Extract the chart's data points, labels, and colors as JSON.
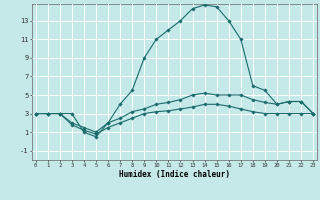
{
  "xlabel": "Humidex (Indice chaleur)",
  "background_color": "#c5e8e8",
  "grid_color": "#ffffff",
  "line_color": "#1a6b6b",
  "x_ticks": [
    0,
    1,
    2,
    3,
    4,
    5,
    6,
    7,
    8,
    9,
    10,
    11,
    12,
    13,
    14,
    15,
    16,
    17,
    18,
    19,
    20,
    21,
    22,
    23
  ],
  "y_ticks": [
    -1,
    1,
    3,
    5,
    7,
    9,
    11,
    13
  ],
  "ylim": [
    -2.0,
    14.8
  ],
  "xlim": [
    -0.3,
    23.3
  ],
  "curves": [
    {
      "x": [
        0,
        1,
        2,
        3,
        4,
        5,
        6,
        7,
        8,
        9,
        10,
        11,
        12,
        13,
        14,
        15,
        16,
        17,
        18,
        19,
        20,
        21,
        22,
        23
      ],
      "y": [
        3.0,
        3.0,
        3.0,
        3.0,
        1.0,
        0.5,
        2.0,
        4.0,
        5.5,
        9.0,
        11.0,
        12.0,
        13.0,
        14.3,
        14.7,
        14.5,
        13.0,
        11.0,
        6.0,
        5.5,
        4.0,
        4.3,
        4.3,
        3.0
      ]
    },
    {
      "x": [
        0,
        1,
        2,
        3,
        4,
        5,
        6,
        7,
        8,
        9,
        10,
        11,
        12,
        13,
        14,
        15,
        16,
        17,
        18,
        19,
        20,
        21,
        22,
        23
      ],
      "y": [
        3.0,
        3.0,
        3.0,
        2.0,
        1.5,
        1.0,
        2.0,
        2.5,
        3.2,
        3.5,
        4.0,
        4.2,
        4.5,
        5.0,
        5.2,
        5.0,
        5.0,
        5.0,
        4.5,
        4.2,
        4.0,
        4.3,
        4.3,
        3.0
      ]
    },
    {
      "x": [
        0,
        1,
        2,
        3,
        4,
        5,
        6,
        7,
        8,
        9,
        10,
        11,
        12,
        13,
        14,
        15,
        16,
        17,
        18,
        19,
        20,
        21,
        22,
        23
      ],
      "y": [
        3.0,
        3.0,
        3.0,
        1.8,
        1.2,
        0.8,
        1.5,
        2.0,
        2.5,
        3.0,
        3.2,
        3.3,
        3.5,
        3.7,
        4.0,
        4.0,
        3.8,
        3.5,
        3.2,
        3.0,
        3.0,
        3.0,
        3.0,
        3.0
      ]
    }
  ]
}
